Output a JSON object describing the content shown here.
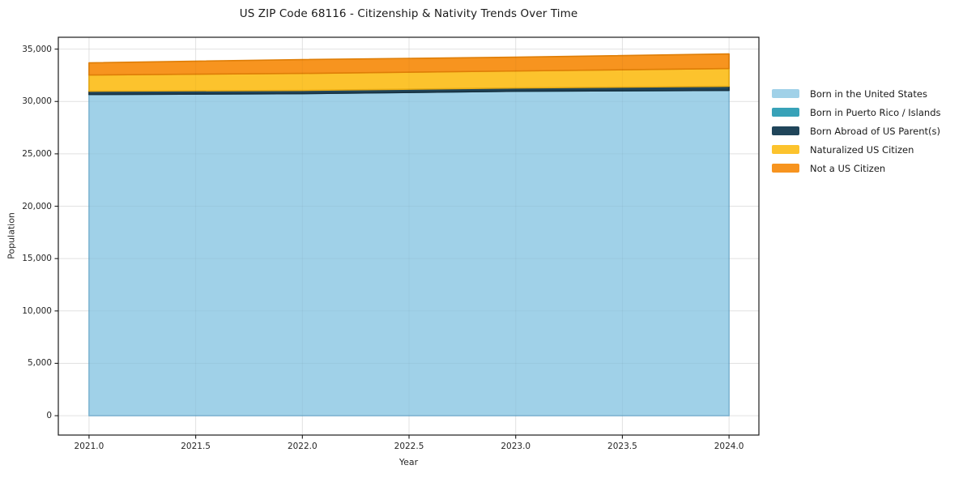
{
  "figure": {
    "background": "#ffffff",
    "text_color": "#262626",
    "spine_color": "#1a1a1a",
    "grid_color": "#eaeaea"
  },
  "chart_data": {
    "type": "area",
    "stacked": true,
    "title": "US ZIP Code 68116 - Citizenship & Nativity Trends Over Time",
    "xlabel": "Year",
    "ylabel": "Population",
    "legend_position": "right-outside",
    "grid": true,
    "x": [
      2021,
      2022,
      2023,
      2024
    ],
    "series": [
      {
        "name": "Born in the United States",
        "color": "#a0d1e8",
        "edge_color": "#82b9d6",
        "values": [
          30670,
          30750,
          30980,
          31060
        ]
      },
      {
        "name": "Born in Puerto Rico / Islands",
        "color": "#38a2b8",
        "edge_color": "#2e8ba0",
        "values": [
          0,
          0,
          0,
          0
        ]
      },
      {
        "name": "Born Abroad of US Parent(s)",
        "color": "#20455a",
        "edge_color": "#172f3e",
        "values": [
          310,
          310,
          310,
          390
        ]
      },
      {
        "name": "Naturalized US Citizen",
        "color": "#fcc32d",
        "edge_color": "#e8ab14",
        "values": [
          1550,
          1620,
          1620,
          1700
        ]
      },
      {
        "name": "Not a US Citizen",
        "color": "#f7941f",
        "edge_color": "#df7e07",
        "values": [
          1160,
          1320,
          1320,
          1390
        ]
      }
    ],
    "axes": {
      "xlim": [
        2020.856,
        2024.14
      ],
      "ylim": [
        -1850,
        36130
      ],
      "xticks": {
        "values": [
          2021.0,
          2021.5,
          2022.0,
          2022.5,
          2023.0,
          2023.5,
          2024.0
        ],
        "labels": [
          "2021.0",
          "2021.5",
          "2022.0",
          "2022.5",
          "2023.0",
          "2023.5",
          "2024.0"
        ]
      },
      "yticks": {
        "values": [
          0,
          5000,
          10000,
          15000,
          20000,
          25000,
          30000,
          35000
        ],
        "labels": [
          "0",
          "5,000",
          "10,000",
          "15,000",
          "20,000",
          "25,000",
          "30,000",
          "35,000"
        ]
      }
    }
  }
}
